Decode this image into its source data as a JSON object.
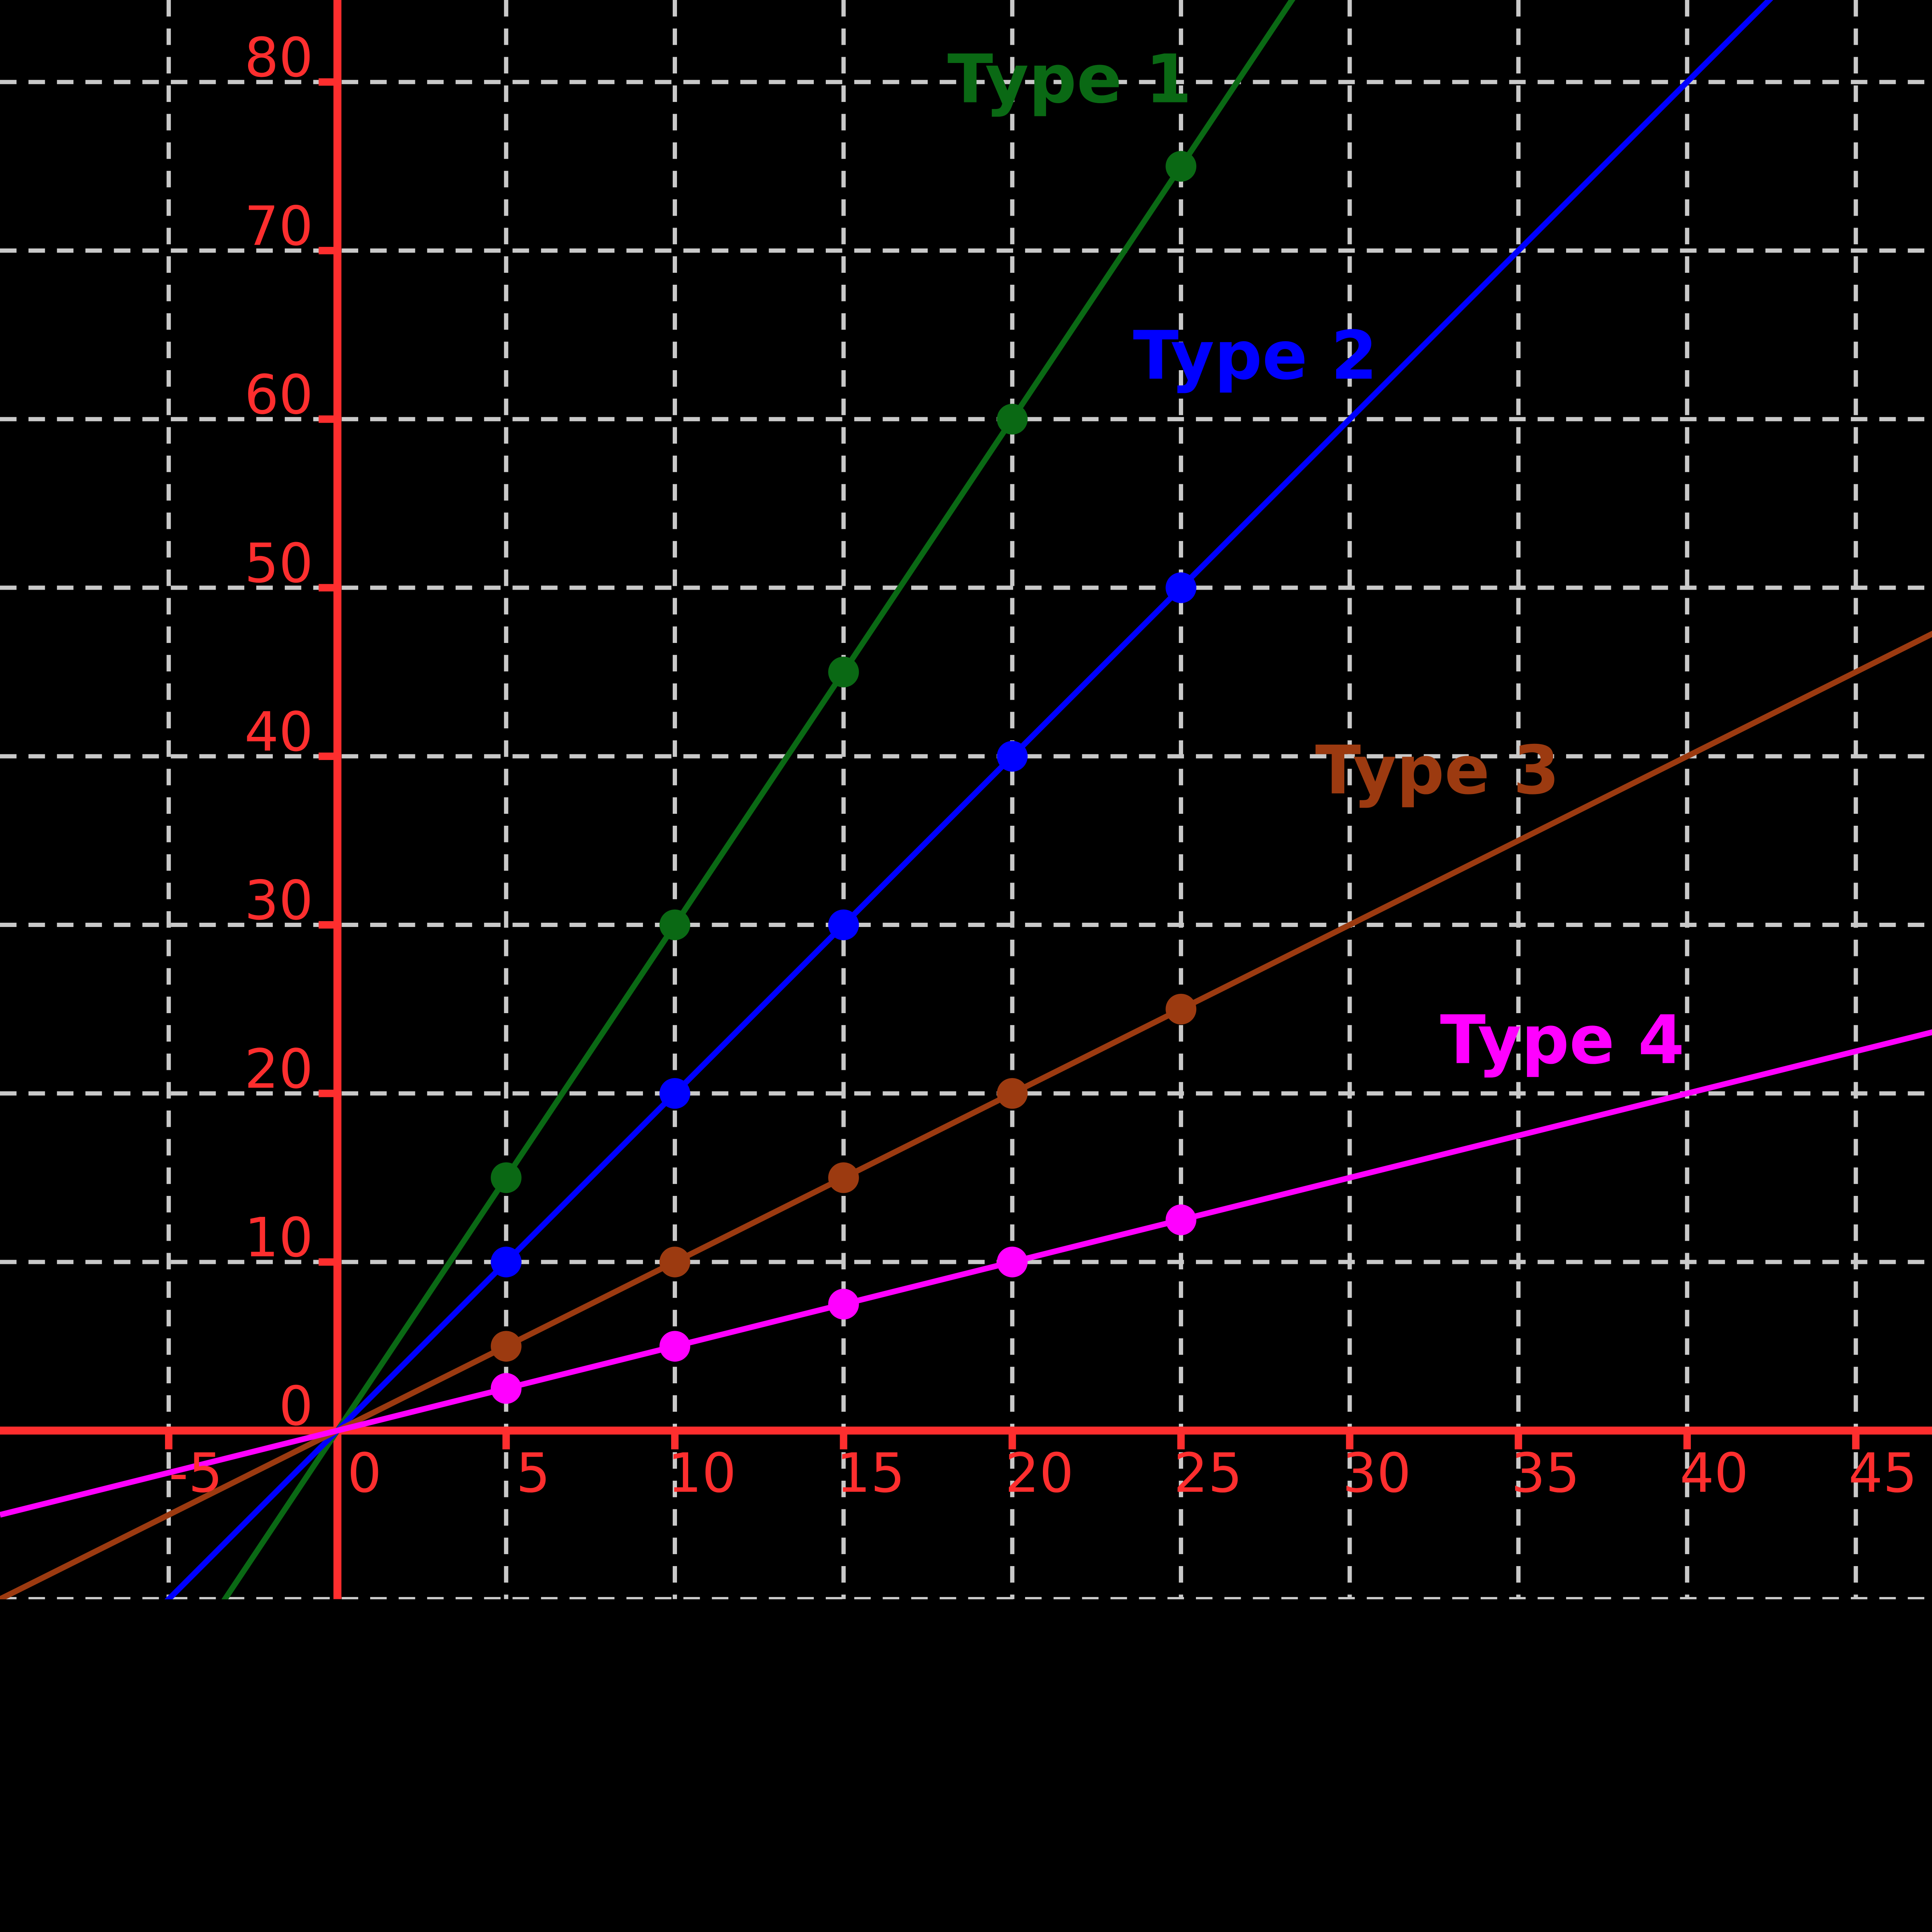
{
  "chart_data": {
    "type": "line",
    "title": "",
    "xlabel": "",
    "ylabel": "",
    "background": "#000000",
    "grid": true,
    "legend_position": "inline-annotations",
    "series": [
      {
        "name": "Type 1",
        "color": "#0a6914",
        "slope": 3,
        "x": [
          5,
          10,
          15,
          20,
          25
        ],
        "y": [
          15,
          30,
          45,
          60,
          75
        ],
        "label_pos": {
          "x": 21.7,
          "y": 78.8
        }
      },
      {
        "name": "Type 2",
        "color": "#0000ff",
        "slope": 2,
        "x": [
          5,
          10,
          15,
          20,
          25
        ],
        "y": [
          10,
          20,
          30,
          40,
          50
        ],
        "label_pos": {
          "x": 27.2,
          "y": 62.4
        }
      },
      {
        "name": "Type 3",
        "color": "#9c3a10",
        "slope": 1,
        "x": [
          5,
          10,
          15,
          20,
          25
        ],
        "y": [
          5,
          10,
          15,
          20,
          25
        ],
        "label_pos": {
          "x": 32.6,
          "y": 37.8
        }
      },
      {
        "name": "Type 4",
        "color": "#ff00ff",
        "slope": 0.5,
        "x": [
          5,
          10,
          15,
          20,
          25
        ],
        "y": [
          2.5,
          5,
          7.5,
          10,
          12.5
        ],
        "label_pos": {
          "x": 36.3,
          "y": 21.8
        }
      }
    ],
    "axes": {
      "xlim": [
        -10,
        47.3
      ],
      "ylim": [
        -10,
        84.9
      ],
      "x_ticks": [
        -5,
        0,
        5,
        10,
        15,
        20,
        25,
        30,
        35,
        40,
        45
      ],
      "y_ticks": [
        0,
        10,
        20,
        30,
        40,
        50,
        60,
        70,
        80
      ],
      "x_grid": [
        -5,
        5,
        10,
        15,
        20,
        25,
        30,
        35,
        40,
        45
      ],
      "y_grid": [
        -10,
        10,
        20,
        30,
        40,
        50,
        60,
        70,
        80
      ],
      "axis_color": "#fe2e2e",
      "tick_label_color": "#fe2e2e",
      "grid_color": "#c9c9c9"
    }
  }
}
